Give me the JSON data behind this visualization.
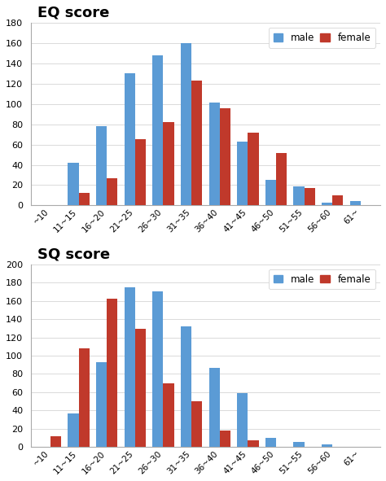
{
  "categories": [
    "~10",
    "11~15",
    "16~20",
    "21~25",
    "26~30",
    "31~35",
    "36~40",
    "41~45",
    "46~50",
    "51~55",
    "56~60",
    "61~"
  ],
  "eq_male": [
    0,
    42,
    78,
    130,
    148,
    160,
    101,
    63,
    25,
    19,
    3,
    4
  ],
  "eq_female": [
    0,
    12,
    27,
    65,
    82,
    123,
    96,
    72,
    52,
    17,
    10,
    0
  ],
  "sq_male": [
    0,
    37,
    93,
    175,
    170,
    132,
    87,
    59,
    10,
    6,
    3,
    0
  ],
  "sq_female": [
    12,
    108,
    162,
    129,
    70,
    50,
    18,
    7,
    0,
    0,
    0,
    0
  ],
  "eq_ylim": [
    0,
    180
  ],
  "sq_ylim": [
    0,
    200
  ],
  "eq_yticks": [
    0,
    20,
    40,
    60,
    80,
    100,
    120,
    140,
    160,
    180
  ],
  "sq_yticks": [
    0,
    20,
    40,
    60,
    80,
    100,
    120,
    140,
    160,
    180,
    200
  ],
  "male_color": "#5b9bd5",
  "female_color": "#c0392b",
  "eq_title": "EQ score",
  "sq_title": "SQ score",
  "background_color": "#ffffff"
}
